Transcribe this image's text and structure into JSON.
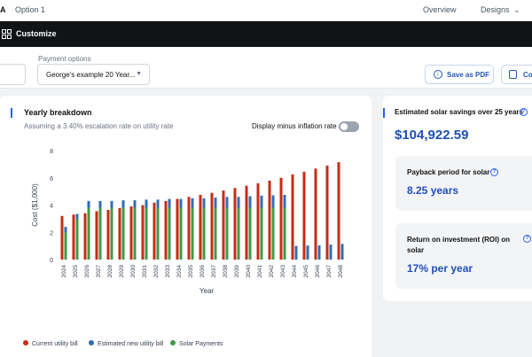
{
  "topbar": {
    "logo": "A",
    "option": "Option 1",
    "overview": "Overview",
    "designs": "Designs"
  },
  "darkbar": {
    "label": "Customize"
  },
  "options": {
    "payment_label": "Payment options",
    "payment_value": "George's example 20 Year...",
    "pdf_label": "Save as PDF",
    "copy_label": "Co"
  },
  "breakdown": {
    "title": "Yearly breakdown",
    "subtitle": "Assuming a 3.40% escalation rate on utility rate",
    "toggle_label": "Display minus inflation rate"
  },
  "savings": {
    "title": "Estimated solar savings over 25 years",
    "value": "$104,922.59",
    "payback_label": "Payback period for solar",
    "payback_value": "8.25 years",
    "roi_label": "Return on investment (ROI) on solar",
    "roi_value": "17% per year"
  },
  "colors": {
    "utility": "#c62d14",
    "new_bill": "#2f6eb5",
    "solar": "#3f9a47",
    "accent": "#2563eb"
  },
  "chart_data": {
    "type": "bar",
    "xlabel": "Year",
    "ylabel": "Cost ($1,000)",
    "ylim": [
      0,
      8
    ],
    "yticks": [
      0,
      2,
      4,
      6,
      8
    ],
    "categories": [
      "2024",
      "2025",
      "2026",
      "2027",
      "2028",
      "2029",
      "2030",
      "2031",
      "2032",
      "2033",
      "2034",
      "2035",
      "2036",
      "2037",
      "2038",
      "2039",
      "2040",
      "2041",
      "2042",
      "2043",
      "2044",
      "2045",
      "2046",
      "2047",
      "2048"
    ],
    "series": [
      {
        "name": "Current utility bill",
        "values": [
          3.2,
          3.3,
          3.4,
          3.55,
          3.65,
          3.78,
          3.9,
          4.0,
          4.18,
          4.3,
          4.45,
          4.6,
          4.75,
          4.9,
          5.07,
          5.25,
          5.42,
          5.6,
          5.8,
          6.0,
          6.25,
          6.45,
          6.68,
          6.9,
          7.15
        ]
      },
      {
        "name": "Estimated new utility bill",
        "values": [
          2.4,
          3.35,
          4.3,
          4.3,
          4.3,
          4.35,
          4.35,
          4.4,
          4.4,
          4.45,
          4.45,
          4.5,
          4.5,
          4.55,
          4.6,
          4.6,
          4.65,
          4.7,
          4.72,
          4.75,
          1.0,
          1.03,
          1.05,
          1.1,
          1.15
        ]
      },
      {
        "name": "Solar Payments",
        "values": [
          2.0,
          2.95,
          3.8,
          3.8,
          3.8,
          3.8,
          3.8,
          3.8,
          3.8,
          3.8,
          3.8,
          3.8,
          3.8,
          3.8,
          3.8,
          3.8,
          3.8,
          3.8,
          3.8,
          3.8,
          0,
          0,
          0,
          0,
          0
        ]
      }
    ]
  }
}
